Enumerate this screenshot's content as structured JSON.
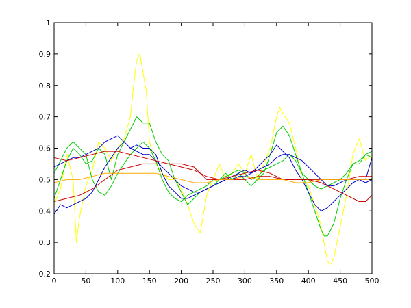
{
  "chart_data": {
    "type": "line",
    "title": "",
    "xlabel": "",
    "ylabel": "",
    "xlim": [
      0,
      500
    ],
    "ylim": [
      0.2,
      1
    ],
    "xticks": [
      0,
      50,
      100,
      150,
      200,
      250,
      300,
      350,
      400,
      450,
      500
    ],
    "yticks": [
      0.2,
      0.3,
      0.4,
      0.5,
      0.6,
      0.7,
      0.8,
      0.9,
      1
    ],
    "xtick_labels": [
      "0",
      "50",
      "100",
      "150",
      "200",
      "250",
      "300",
      "350",
      "400",
      "450",
      "500"
    ],
    "ytick_labels": [
      "0.2",
      "0.3",
      "0.4",
      "0.5",
      "0.6",
      "0.7",
      "0.8",
      "0.9",
      "1"
    ],
    "grid": false,
    "legend": "none",
    "series": [
      {
        "color": "#ffff00",
        "x": [
          0,
          10,
          20,
          30,
          35,
          40,
          50,
          60,
          70,
          80,
          90,
          100,
          110,
          120,
          125,
          130,
          135,
          140,
          145,
          150,
          160,
          170,
          180,
          190,
          200,
          210,
          220,
          230,
          240,
          250,
          260,
          270,
          280,
          290,
          300,
          310,
          320,
          330,
          340,
          350,
          355,
          360,
          370,
          380,
          390,
          400,
          410,
          420,
          430,
          435,
          440,
          450,
          460,
          470,
          480,
          490,
          500
        ],
        "y": [
          0.42,
          0.47,
          0.58,
          0.5,
          0.3,
          0.38,
          0.48,
          0.53,
          0.62,
          0.6,
          0.56,
          0.6,
          0.63,
          0.7,
          0.8,
          0.88,
          0.9,
          0.84,
          0.78,
          0.62,
          0.55,
          0.52,
          0.5,
          0.5,
          0.47,
          0.42,
          0.36,
          0.33,
          0.45,
          0.5,
          0.55,
          0.5,
          0.52,
          0.55,
          0.52,
          0.58,
          0.5,
          0.55,
          0.6,
          0.7,
          0.73,
          0.71,
          0.68,
          0.6,
          0.5,
          0.48,
          0.42,
          0.35,
          0.24,
          0.23,
          0.25,
          0.35,
          0.45,
          0.58,
          0.63,
          0.56,
          0.58
        ]
      },
      {
        "color": "#00cc00",
        "x": [
          0,
          10,
          20,
          30,
          40,
          50,
          60,
          70,
          80,
          90,
          100,
          110,
          120,
          130,
          140,
          150,
          160,
          170,
          180,
          190,
          200,
          210,
          220,
          230,
          240,
          250,
          260,
          270,
          280,
          290,
          300,
          310,
          320,
          330,
          340,
          350,
          360,
          370,
          380,
          390,
          400,
          410,
          420,
          425,
          430,
          440,
          450,
          460,
          470,
          480,
          490,
          500
        ],
        "y": [
          0.44,
          0.5,
          0.56,
          0.6,
          0.58,
          0.55,
          0.56,
          0.6,
          0.58,
          0.5,
          0.58,
          0.62,
          0.66,
          0.7,
          0.68,
          0.68,
          0.62,
          0.58,
          0.56,
          0.5,
          0.46,
          0.42,
          0.44,
          0.46,
          0.47,
          0.48,
          0.5,
          0.52,
          0.5,
          0.52,
          0.5,
          0.48,
          0.5,
          0.52,
          0.58,
          0.65,
          0.67,
          0.64,
          0.58,
          0.52,
          0.46,
          0.4,
          0.34,
          0.32,
          0.32,
          0.36,
          0.44,
          0.5,
          0.55,
          0.55,
          0.58,
          0.59
        ]
      },
      {
        "color": "#00cc00",
        "x": [
          0,
          10,
          20,
          30,
          40,
          50,
          60,
          70,
          80,
          90,
          100,
          110,
          120,
          130,
          140,
          150,
          160,
          170,
          180,
          190,
          200,
          210,
          220,
          230,
          240,
          250,
          260,
          270,
          280,
          290,
          300,
          310,
          320,
          330,
          340,
          350,
          360,
          370,
          380,
          390,
          400,
          410,
          420,
          430,
          440,
          450,
          460,
          470,
          480,
          490,
          500
        ],
        "y": [
          0.52,
          0.56,
          0.6,
          0.62,
          0.6,
          0.58,
          0.5,
          0.46,
          0.45,
          0.48,
          0.52,
          0.55,
          0.58,
          0.6,
          0.62,
          0.6,
          0.56,
          0.5,
          0.46,
          0.44,
          0.43,
          0.45,
          0.46,
          0.47,
          0.48,
          0.5,
          0.5,
          0.51,
          0.52,
          0.53,
          0.52,
          0.5,
          0.51,
          0.53,
          0.54,
          0.55,
          0.56,
          0.58,
          0.56,
          0.52,
          0.5,
          0.48,
          0.47,
          0.48,
          0.49,
          0.5,
          0.52,
          0.55,
          0.56,
          0.58,
          0.57
        ]
      },
      {
        "color": "#0000cc",
        "x": [
          0,
          10,
          20,
          30,
          40,
          50,
          60,
          70,
          80,
          90,
          100,
          110,
          120,
          130,
          140,
          150,
          160,
          170,
          180,
          190,
          200,
          210,
          220,
          230,
          240,
          250,
          260,
          270,
          280,
          290,
          300,
          310,
          320,
          330,
          340,
          350,
          360,
          370,
          380,
          390,
          400,
          410,
          420,
          430,
          440,
          450,
          460,
          470,
          480,
          490,
          500
        ],
        "y": [
          0.39,
          0.42,
          0.41,
          0.42,
          0.43,
          0.44,
          0.46,
          0.5,
          0.54,
          0.57,
          0.6,
          0.62,
          0.6,
          0.61,
          0.6,
          0.6,
          0.58,
          0.52,
          0.48,
          0.46,
          0.44,
          0.44,
          0.45,
          0.46,
          0.47,
          0.48,
          0.49,
          0.5,
          0.51,
          0.52,
          0.53,
          0.52,
          0.54,
          0.56,
          0.58,
          0.61,
          0.59,
          0.57,
          0.53,
          0.5,
          0.46,
          0.42,
          0.4,
          0.41,
          0.43,
          0.45,
          0.47,
          0.49,
          0.5,
          0.5,
          0.57
        ]
      },
      {
        "color": "#0000cc",
        "x": [
          0,
          10,
          20,
          30,
          40,
          50,
          60,
          70,
          80,
          90,
          100,
          110,
          120,
          130,
          140,
          150,
          160,
          170,
          180,
          190,
          200,
          210,
          220,
          230,
          240,
          250,
          260,
          270,
          280,
          290,
          300,
          310,
          320,
          330,
          340,
          350,
          360,
          370,
          380,
          390,
          400,
          410,
          420,
          430,
          440,
          450,
          460,
          470,
          480,
          490,
          500
        ],
        "y": [
          0.54,
          0.55,
          0.56,
          0.57,
          0.57,
          0.58,
          0.59,
          0.6,
          0.62,
          0.63,
          0.64,
          0.62,
          0.6,
          0.59,
          0.58,
          0.58,
          0.56,
          0.54,
          0.52,
          0.5,
          0.48,
          0.47,
          0.46,
          0.46,
          0.47,
          0.48,
          0.49,
          0.5,
          0.5,
          0.51,
          0.51,
          0.52,
          0.53,
          0.54,
          0.55,
          0.57,
          0.58,
          0.58,
          0.57,
          0.56,
          0.54,
          0.52,
          0.5,
          0.48,
          0.48,
          0.49,
          0.5,
          0.5,
          0.5,
          0.49,
          0.5
        ]
      },
      {
        "color": "#cc0000",
        "x": [
          0,
          20,
          40,
          60,
          80,
          100,
          120,
          140,
          160,
          180,
          200,
          220,
          240,
          260,
          280,
          300,
          320,
          340,
          360,
          380,
          400,
          420,
          440,
          460,
          480,
          490,
          500
        ],
        "y": [
          0.57,
          0.56,
          0.57,
          0.58,
          0.59,
          0.59,
          0.58,
          0.57,
          0.56,
          0.55,
          0.54,
          0.53,
          0.51,
          0.5,
          0.5,
          0.5,
          0.51,
          0.51,
          0.5,
          0.5,
          0.5,
          0.49,
          0.47,
          0.45,
          0.43,
          0.43,
          0.45
        ]
      },
      {
        "color": "#cc0000",
        "x": [
          0,
          20,
          40,
          60,
          80,
          100,
          120,
          140,
          160,
          180,
          200,
          220,
          240,
          260,
          280,
          300,
          320,
          340,
          360,
          380,
          400,
          420,
          440,
          460,
          480,
          500
        ],
        "y": [
          0.43,
          0.44,
          0.45,
          0.47,
          0.5,
          0.53,
          0.54,
          0.55,
          0.55,
          0.55,
          0.55,
          0.54,
          0.5,
          0.5,
          0.51,
          0.52,
          0.53,
          0.52,
          0.5,
          0.5,
          0.5,
          0.5,
          0.5,
          0.5,
          0.51,
          0.51
        ]
      },
      {
        "color": "#ffaa00",
        "x": [
          0,
          20,
          40,
          60,
          80,
          100,
          120,
          140,
          160,
          180,
          200,
          220,
          240,
          260,
          280,
          300,
          320,
          340,
          360,
          380,
          400,
          420,
          440,
          460,
          480,
          500
        ],
        "y": [
          0.49,
          0.5,
          0.5,
          0.51,
          0.52,
          0.52,
          0.52,
          0.52,
          0.52,
          0.51,
          0.5,
          0.49,
          0.49,
          0.5,
          0.5,
          0.51,
          0.5,
          0.5,
          0.5,
          0.49,
          0.49,
          0.5,
          0.5,
          0.5,
          0.5,
          0.5
        ]
      }
    ]
  }
}
